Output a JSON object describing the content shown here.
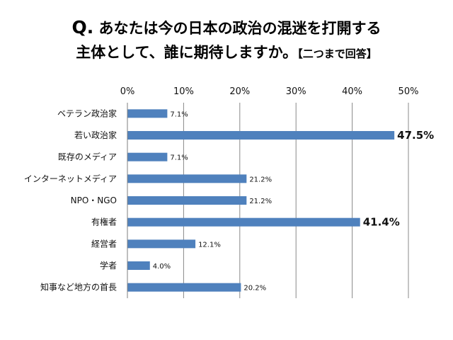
{
  "title": {
    "q": "Q.",
    "line1_rest": " あなたは今の日本の政治の混迷を打開する",
    "line2": "主体として、誰に期待しますか。",
    "note": "【二つまで回答】"
  },
  "chart_data": {
    "type": "bar",
    "orientation": "horizontal",
    "title": "Q. あなたは今の日本の政治の混迷を打開する主体として、誰に期待しますか。【二つまで回答】",
    "categories": [
      "ベテラン政治家",
      "若い政治家",
      "既存のメディア",
      "インターネットメディア",
      "NPO・NGO",
      "有権者",
      "経営者",
      "学者",
      "知事など地方の首長"
    ],
    "values": [
      7.1,
      47.5,
      7.1,
      21.2,
      21.2,
      41.4,
      12.1,
      4.0,
      20.2
    ],
    "labels": [
      "7.1%",
      "47.5%",
      "7.1%",
      "21.2%",
      "21.2%",
      "41.4%",
      "12.1%",
      "4.0%",
      "20.2%"
    ],
    "emphasized": [
      false,
      true,
      false,
      false,
      false,
      true,
      false,
      false,
      false
    ],
    "xticks": [
      "0%",
      "10%",
      "20%",
      "30%",
      "40%",
      "50%"
    ],
    "xlim": [
      0,
      50
    ],
    "bar_color": "#4F81BD",
    "gridline_color": "#888888",
    "grid": true,
    "axis_position": "top"
  }
}
